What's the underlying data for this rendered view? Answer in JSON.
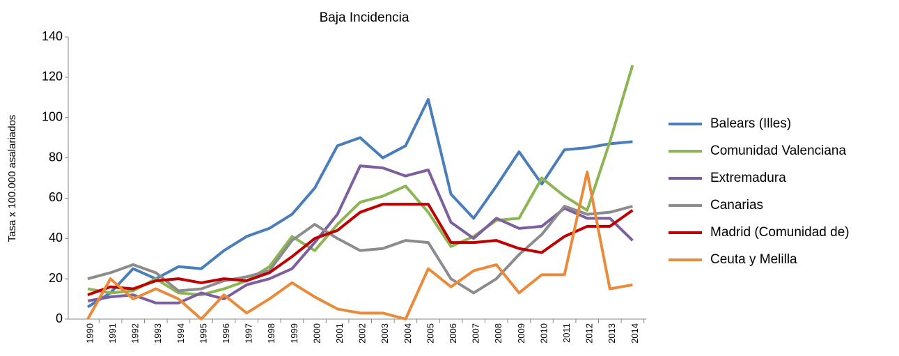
{
  "chart_data": {
    "type": "line",
    "title": "Baja Incidencia",
    "y_label": "Tasa x 100.000 asalariados",
    "categories": [
      "1990",
      "1991",
      "1992",
      "1993",
      "1994",
      "1995",
      "1996",
      "1997",
      "1998",
      "1999",
      "2000",
      "2001",
      "2002",
      "2003",
      "2004",
      "2005",
      "2006",
      "2007",
      "2008",
      "2009",
      "2010",
      "2011",
      "2012",
      "2013",
      "2014"
    ],
    "ylim": [
      0,
      140
    ],
    "yticks": [
      0,
      20,
      40,
      60,
      80,
      100,
      120,
      140
    ],
    "grid": false,
    "legend": "right",
    "series": [
      {
        "name": "Balears (Illes)",
        "color": "#4a7ebb",
        "values": [
          6,
          13,
          25,
          20,
          26,
          25,
          34,
          41,
          45,
          52,
          65,
          86,
          90,
          80,
          86,
          109,
          62,
          50,
          66,
          83,
          67,
          84,
          85,
          87,
          88
        ]
      },
      {
        "name": "Comunidad Valenciana",
        "color": "#8cb553",
        "values": [
          15,
          13,
          14,
          20,
          13,
          12,
          15,
          19,
          26,
          41,
          34,
          47,
          58,
          61,
          66,
          53,
          36,
          41,
          49,
          50,
          70,
          61,
          54,
          88,
          126
        ]
      },
      {
        "name": "Extremadura",
        "color": "#7d5fa0",
        "values": [
          9,
          11,
          12,
          8,
          8,
          13,
          10,
          17,
          20,
          25,
          38,
          52,
          76,
          75,
          71,
          74,
          48,
          40,
          50,
          45,
          46,
          55,
          50,
          50,
          39
        ]
      },
      {
        "name": "Canarias",
        "color": "#8c8c8c",
        "values": [
          20,
          23,
          27,
          23,
          14,
          15,
          19,
          21,
          24,
          39,
          47,
          40,
          34,
          35,
          39,
          38,
          20,
          13,
          20,
          32,
          42,
          56,
          52,
          53,
          56
        ]
      },
      {
        "name": "Madrid (Comunidad de)",
        "color": "#c00000",
        "values": [
          12,
          16,
          15,
          19,
          20,
          18,
          20,
          19,
          23,
          31,
          40,
          44,
          53,
          57,
          57,
          57,
          38,
          38,
          39,
          35,
          33,
          41,
          46,
          46,
          54
        ]
      },
      {
        "name": "Ceuta y Melilla",
        "color": "#e98b3a",
        "values": [
          0,
          20,
          10,
          15,
          10,
          0,
          12,
          3,
          10,
          18,
          11,
          5,
          3,
          3,
          0,
          25,
          16,
          24,
          27,
          13,
          22,
          22,
          73,
          15,
          17
        ]
      }
    ]
  }
}
